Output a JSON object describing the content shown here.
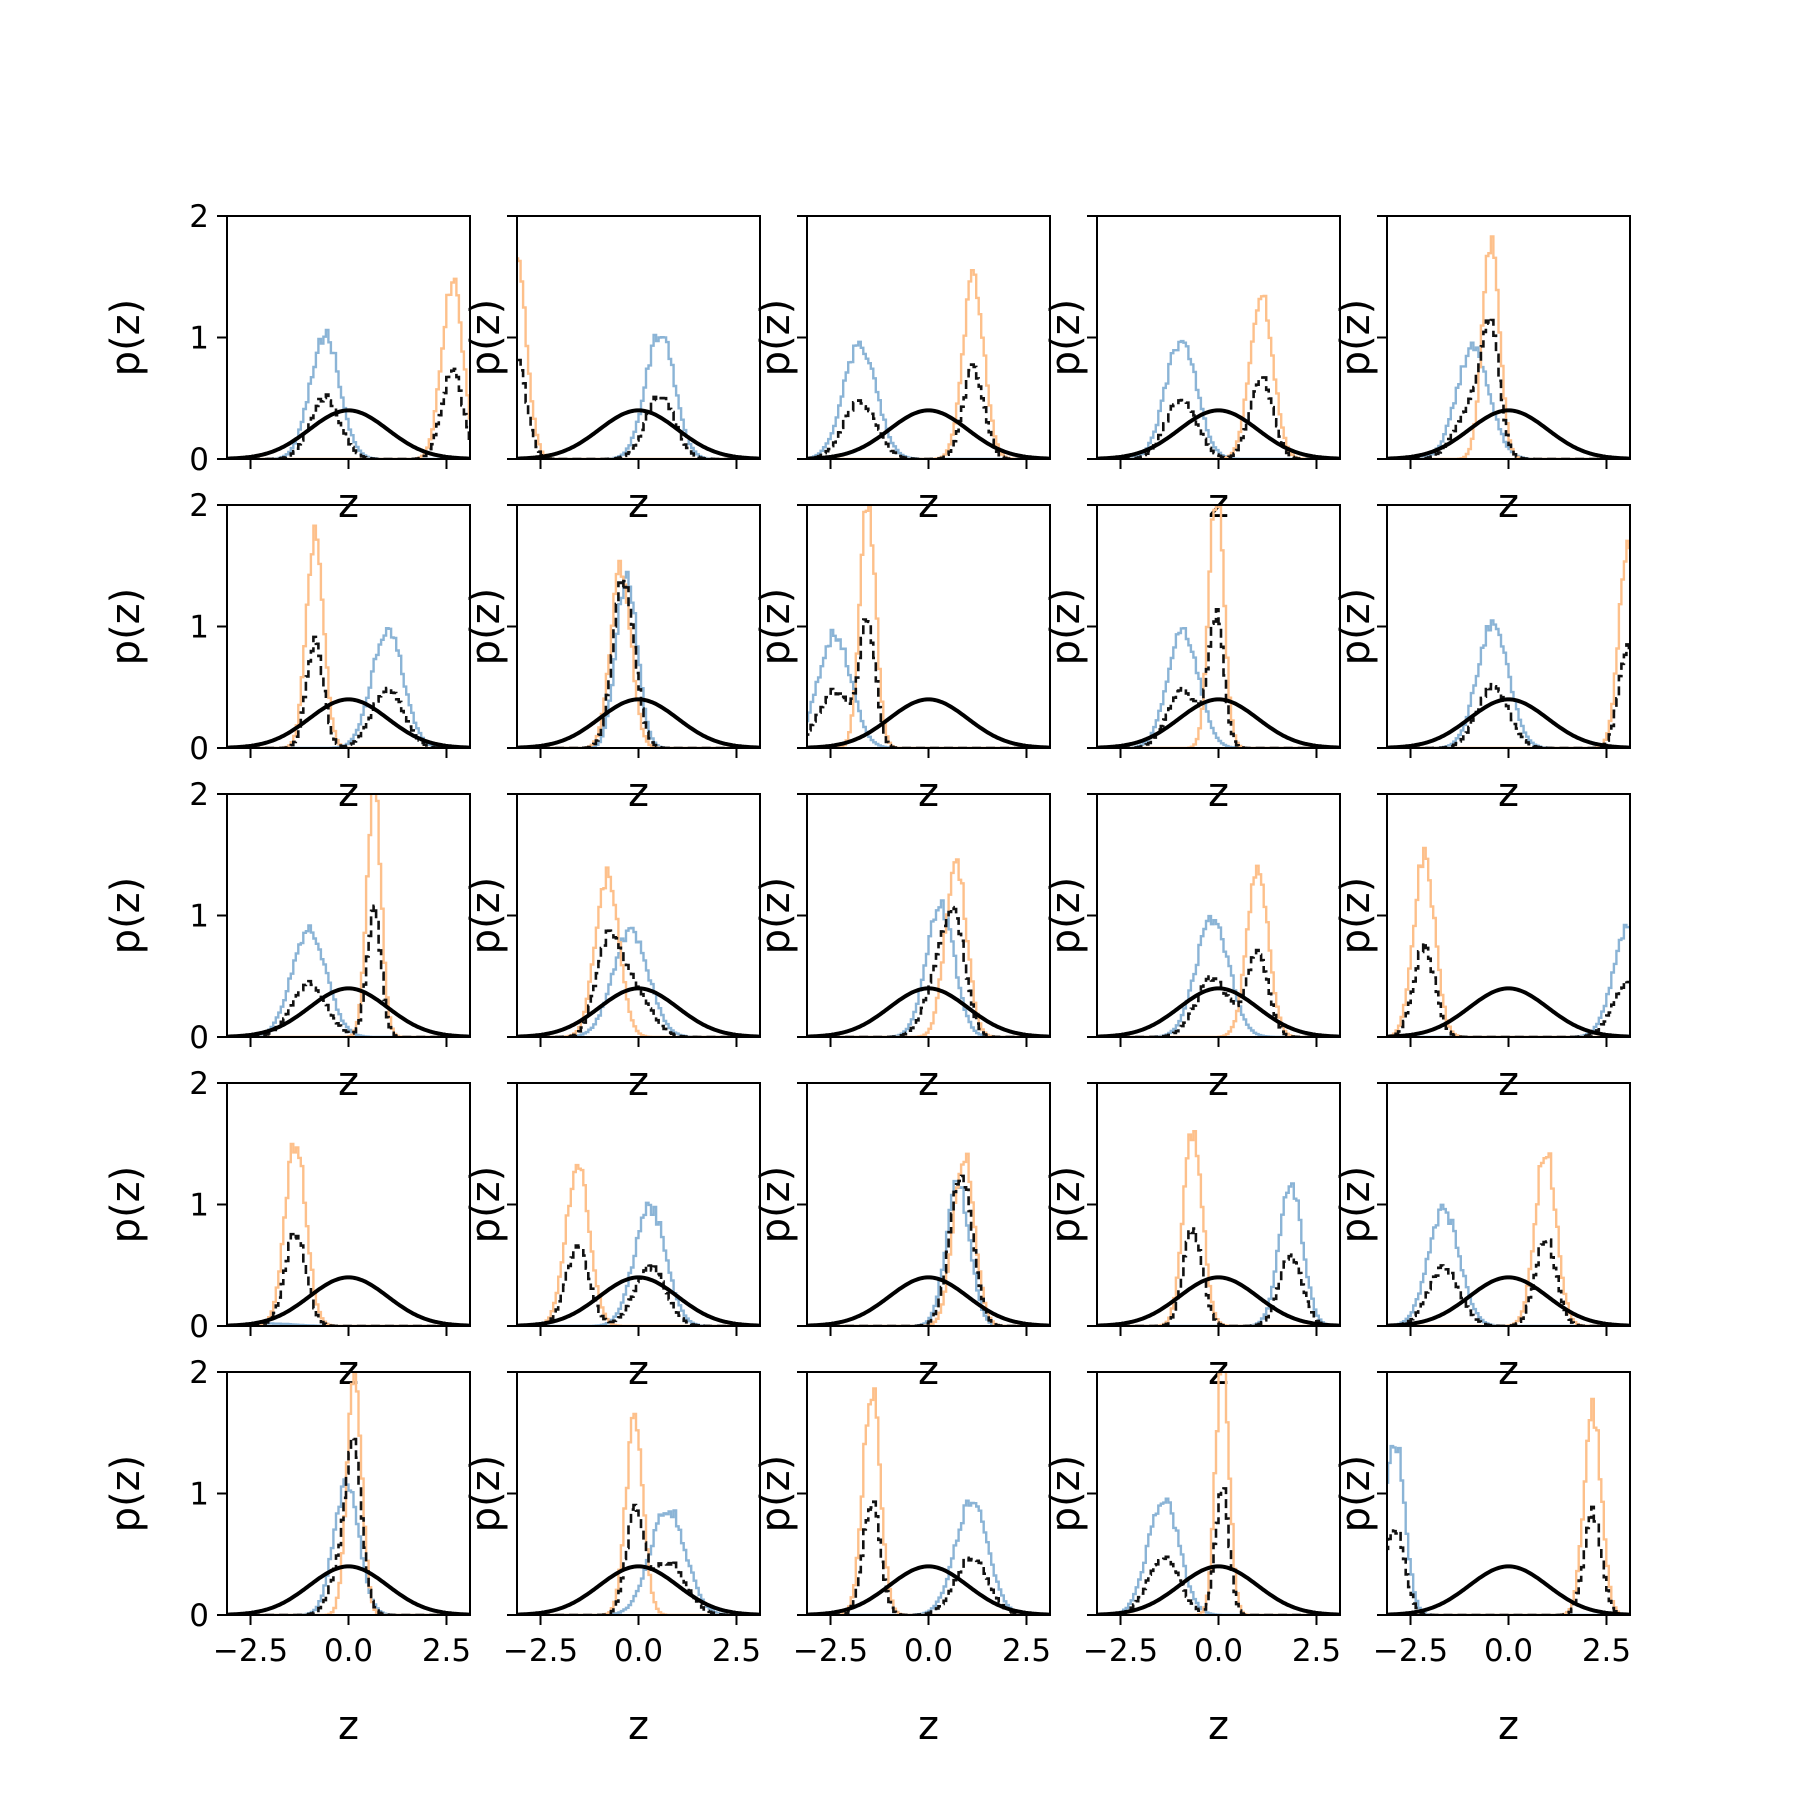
{
  "figure": {
    "rows": 5,
    "cols": 5
  },
  "colors": {
    "blue_hist": "#8bb4d6",
    "orange_hist": "#fdc08b",
    "dashed_hist": "#111111",
    "gaussian": "#000000",
    "frame": "#000000"
  },
  "chart_data": {
    "type": "line",
    "subplot_layout": "5x5 grid",
    "shared_axes": {
      "xlim": [
        -3.1,
        3.1
      ],
      "ylim": [
        0,
        2
      ],
      "xticks": [
        -2.5,
        0.0,
        2.5
      ],
      "xtick_labels": [
        "−2.5",
        "0.0",
        "2.5"
      ],
      "yticks": [
        0,
        1,
        2
      ],
      "ytick_labels": [
        "0",
        "1",
        "2"
      ],
      "xlabel": "z",
      "ylabel": "p(z)",
      "grid": false
    },
    "series_styles": [
      {
        "role": "component A histogram (step)",
        "color": "#8bb4d6",
        "line": "solid"
      },
      {
        "role": "component B histogram (step)",
        "color": "#fdc08b",
        "line": "solid"
      },
      {
        "role": "mixture histogram (step)",
        "color": "#111111",
        "line": "dashed"
      },
      {
        "role": "standard normal density",
        "color": "#000000",
        "line": "solid"
      }
    ],
    "reference_curve": {
      "mean": 0,
      "std": 1,
      "peak": 0.4
    },
    "subplots": [
      {
        "row": 1,
        "col": 1,
        "blue": {
          "mean": -0.6,
          "std": 0.38,
          "peak": 1.02
        },
        "orange": {
          "mean": 2.65,
          "std": 0.27,
          "peak": 1.45
        }
      },
      {
        "row": 1,
        "col": 2,
        "blue": {
          "mean": 0.55,
          "std": 0.37,
          "peak": 1.05
        },
        "orange": {
          "mean": -3.1,
          "std": 0.25,
          "peak": 1.6
        }
      },
      {
        "row": 1,
        "col": 3,
        "blue": {
          "mean": -1.75,
          "std": 0.42,
          "peak": 0.95
        },
        "orange": {
          "mean": 1.15,
          "std": 0.27,
          "peak": 1.48
        }
      },
      {
        "row": 1,
        "col": 4,
        "blue": {
          "mean": -0.95,
          "std": 0.4,
          "peak": 0.98
        },
        "orange": {
          "mean": 1.1,
          "std": 0.29,
          "peak": 1.38
        }
      },
      {
        "row": 1,
        "col": 5,
        "blue": {
          "mean": -0.9,
          "std": 0.42,
          "peak": 0.92
        },
        "orange": {
          "mean": -0.45,
          "std": 0.22,
          "peak": 1.75
        }
      },
      {
        "row": 2,
        "col": 1,
        "blue": {
          "mean": 1.0,
          "std": 0.4,
          "peak": 0.98
        },
        "orange": {
          "mean": -0.85,
          "std": 0.22,
          "peak": 1.78
        }
      },
      {
        "row": 2,
        "col": 2,
        "blue": {
          "mean": -0.3,
          "std": 0.27,
          "peak": 1.4
        },
        "orange": {
          "mean": -0.45,
          "std": 0.26,
          "peak": 1.48
        }
      },
      {
        "row": 2,
        "col": 3,
        "blue": {
          "mean": -2.4,
          "std": 0.42,
          "peak": 0.93
        },
        "orange": {
          "mean": -1.55,
          "std": 0.2,
          "peak": 2.05
        }
      },
      {
        "row": 2,
        "col": 4,
        "blue": {
          "mean": -0.9,
          "std": 0.39,
          "peak": 0.98
        },
        "orange": {
          "mean": -0.05,
          "std": 0.19,
          "peak": 2.1
        }
      },
      {
        "row": 2,
        "col": 5,
        "blue": {
          "mean": -0.4,
          "std": 0.4,
          "peak": 1.02
        },
        "orange": {
          "mean": 3.05,
          "std": 0.23,
          "peak": 1.65
        }
      },
      {
        "row": 3,
        "col": 1,
        "blue": {
          "mean": -1.0,
          "std": 0.44,
          "peak": 0.88
        },
        "orange": {
          "mean": 0.65,
          "std": 0.18,
          "peak": 2.1
        }
      },
      {
        "row": 3,
        "col": 2,
        "blue": {
          "mean": -0.2,
          "std": 0.45,
          "peak": 0.88
        },
        "orange": {
          "mean": -0.8,
          "std": 0.3,
          "peak": 1.32
        }
      },
      {
        "row": 3,
        "col": 3,
        "blue": {
          "mean": 0.3,
          "std": 0.36,
          "peak": 1.08
        },
        "orange": {
          "mean": 0.7,
          "std": 0.27,
          "peak": 1.45
        }
      },
      {
        "row": 3,
        "col": 4,
        "blue": {
          "mean": -0.15,
          "std": 0.42,
          "peak": 0.98
        },
        "orange": {
          "mean": 1.0,
          "std": 0.27,
          "peak": 1.42
        }
      },
      {
        "row": 3,
        "col": 5,
        "blue": {
          "mean": 3.1,
          "std": 0.4,
          "peak": 0.95
        },
        "orange": {
          "mean": -2.15,
          "std": 0.27,
          "peak": 1.48
        }
      },
      {
        "row": 4,
        "col": 1,
        "blue": {
          "mean": -2.0,
          "std": 0.6,
          "peak": 0.02
        },
        "orange": {
          "mean": -1.35,
          "std": 0.27,
          "peak": 1.5
        }
      },
      {
        "row": 4,
        "col": 2,
        "blue": {
          "mean": 0.3,
          "std": 0.4,
          "peak": 0.98
        },
        "orange": {
          "mean": -1.55,
          "std": 0.3,
          "peak": 1.32
        }
      },
      {
        "row": 4,
        "col": 3,
        "blue": {
          "mean": 0.75,
          "std": 0.3,
          "peak": 1.18
        },
        "orange": {
          "mean": 0.9,
          "std": 0.27,
          "peak": 1.42
        }
      },
      {
        "row": 4,
        "col": 4,
        "blue": {
          "mean": 1.85,
          "std": 0.3,
          "peak": 1.15
        },
        "orange": {
          "mean": -0.65,
          "std": 0.24,
          "peak": 1.62
        }
      },
      {
        "row": 4,
        "col": 5,
        "blue": {
          "mean": -1.65,
          "std": 0.4,
          "peak": 0.95
        },
        "orange": {
          "mean": 0.95,
          "std": 0.27,
          "peak": 1.45
        }
      },
      {
        "row": 5,
        "col": 1,
        "blue": {
          "mean": -0.05,
          "std": 0.32,
          "peak": 1.08
        },
        "orange": {
          "mean": 0.15,
          "std": 0.19,
          "peak": 1.95
        }
      },
      {
        "row": 5,
        "col": 2,
        "blue": {
          "mean": 0.75,
          "std": 0.45,
          "peak": 0.88
        },
        "orange": {
          "mean": -0.1,
          "std": 0.22,
          "peak": 1.6
        }
      },
      {
        "row": 5,
        "col": 3,
        "blue": {
          "mean": 1.1,
          "std": 0.42,
          "peak": 0.93
        },
        "orange": {
          "mean": -1.45,
          "std": 0.22,
          "peak": 1.88
        }
      },
      {
        "row": 5,
        "col": 4,
        "blue": {
          "mean": -1.4,
          "std": 0.4,
          "peak": 0.95
        },
        "orange": {
          "mean": 0.1,
          "std": 0.17,
          "peak": 2.15
        }
      },
      {
        "row": 5,
        "col": 5,
        "blue": {
          "mean": -2.9,
          "std": 0.25,
          "peak": 1.45
        },
        "orange": {
          "mean": 2.15,
          "std": 0.22,
          "peak": 1.68
        }
      }
    ]
  }
}
